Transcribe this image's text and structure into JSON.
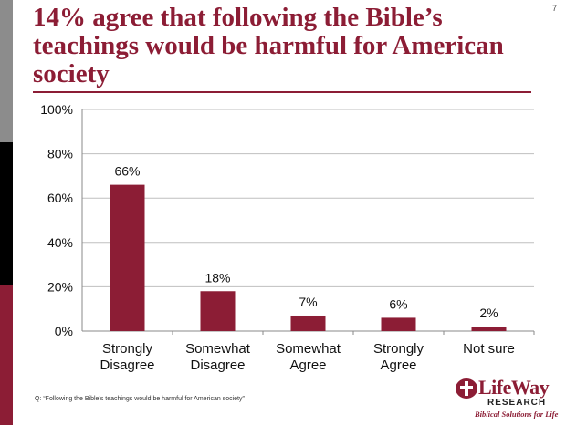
{
  "slide_number": "7",
  "title": "14% agree that following the Bible’s teachings would be harmful for American society",
  "footnote": "Q: “Following the Bible’s teachings would be harmful for American society”",
  "logo": {
    "name": "LifeWay",
    "sub": "RESEARCH",
    "tagline": "Biblical Solutions for Life"
  },
  "colors": {
    "accent": "#8c1d35",
    "bar": "#8c1d35",
    "grid": "#bfbfbf",
    "side_gray": "#8c8c8c",
    "side_black": "#000000"
  },
  "chart_data": {
    "type": "bar",
    "categories": [
      [
        "Strongly",
        "Disagree"
      ],
      [
        "Somewhat",
        "Disagree"
      ],
      [
        "Somewhat",
        "Agree"
      ],
      [
        "Strongly",
        "Agree"
      ],
      [
        "Not sure"
      ]
    ],
    "values": [
      66,
      18,
      7,
      6,
      2
    ],
    "data_labels": [
      "66%",
      "18%",
      "7%",
      "6%",
      "2%"
    ],
    "y_ticks": [
      "0%",
      "20%",
      "40%",
      "60%",
      "80%",
      "100%"
    ],
    "ylim": [
      0,
      100
    ],
    "grid": true,
    "legend": "none"
  }
}
